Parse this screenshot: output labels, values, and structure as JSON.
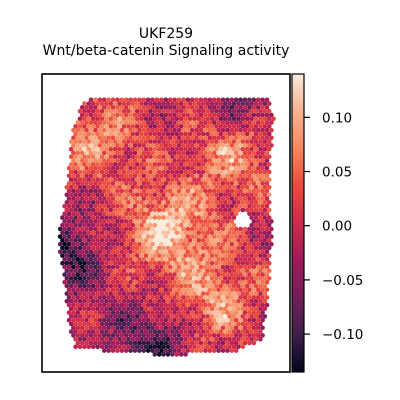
{
  "chart_data": {
    "type": "heatmap",
    "title": "UKF259",
    "subtitle": "Wnt/beta-catenin Signaling activity",
    "xlabel": "",
    "ylabel": "",
    "grid": false,
    "legend": "colorbar-right",
    "colormap": "rocket",
    "colorbar": {
      "vmin": -0.135,
      "vmax": 0.14,
      "ticks": [
        0.1,
        0.05,
        0.0,
        -0.05,
        -0.1
      ],
      "tick_labels": [
        "0.10",
        "0.05",
        "0.00",
        "−0.05",
        "−0.10"
      ]
    },
    "hotspots": [
      {
        "name": "center-hot",
        "value": 0.13
      },
      {
        "name": "upper-right-hot",
        "value": 0.1
      },
      {
        "name": "lower-right-hot",
        "value": 0.09
      },
      {
        "name": "upper-left-hot",
        "value": 0.08
      },
      {
        "name": "left-cold",
        "value": -0.11
      },
      {
        "name": "bottom-cold",
        "value": -0.1
      },
      {
        "name": "top-right-cold",
        "value": -0.09
      }
    ],
    "colors": {
      "cmap_stops": [
        "#03051a",
        "#3e1f4e",
        "#711f57",
        "#a11a5b",
        "#cf2a4b",
        "#ec4a3c",
        "#f4875e",
        "#f6b38f",
        "#faebdd"
      ]
    }
  }
}
